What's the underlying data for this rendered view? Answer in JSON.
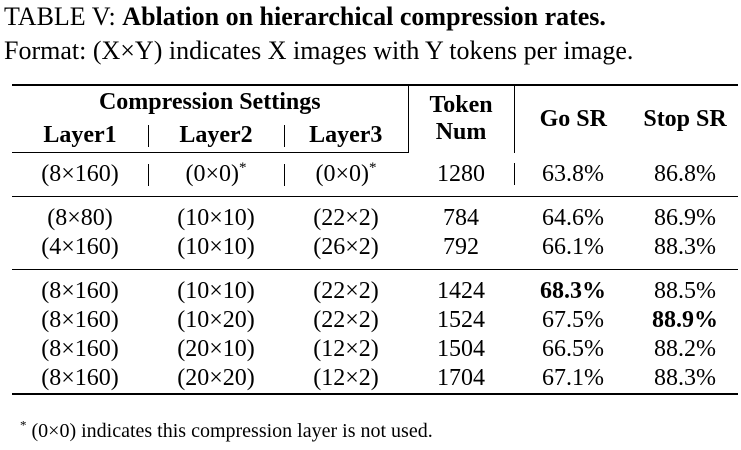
{
  "caption": {
    "label": "TABLE V:",
    "title": "Ablation on hierarchical compression rates.",
    "format_note": "Format: (X×Y) indicates X images with Y tokens per image."
  },
  "table": {
    "group_header": "Compression Settings",
    "columns": [
      "Layer1",
      "Layer2",
      "Layer3",
      "Token Num",
      "Go SR",
      "Stop SR"
    ],
    "row_groups": [
      [
        [
          {
            "text": "(8×160)"
          },
          {
            "text": "(0×0)",
            "note": "*"
          },
          {
            "text": "(0×0)",
            "note": "*"
          },
          {
            "text": "1280"
          },
          {
            "text": "63.8%"
          },
          {
            "text": "86.8%"
          }
        ]
      ],
      [
        [
          {
            "text": "(8×80)"
          },
          {
            "text": "(10×10)"
          },
          {
            "text": "(22×2)"
          },
          {
            "text": "784"
          },
          {
            "text": "64.6%"
          },
          {
            "text": "86.9%"
          }
        ],
        [
          {
            "text": "(4×160)"
          },
          {
            "text": "(10×10)"
          },
          {
            "text": "(26×2)"
          },
          {
            "text": "792"
          },
          {
            "text": "66.1%"
          },
          {
            "text": "88.3%"
          }
        ]
      ],
      [
        [
          {
            "text": "(8×160)"
          },
          {
            "text": "(10×10)"
          },
          {
            "text": "(22×2)"
          },
          {
            "text": "1424"
          },
          {
            "text": "68.3%",
            "bold": true
          },
          {
            "text": "88.5%"
          }
        ],
        [
          {
            "text": "(8×160)"
          },
          {
            "text": "(10×20)"
          },
          {
            "text": "(22×2)"
          },
          {
            "text": "1524"
          },
          {
            "text": "67.5%"
          },
          {
            "text": "88.9%",
            "bold": true
          }
        ],
        [
          {
            "text": "(8×160)"
          },
          {
            "text": "(20×10)"
          },
          {
            "text": "(12×2)"
          },
          {
            "text": "1504"
          },
          {
            "text": "66.5%"
          },
          {
            "text": "88.2%"
          }
        ],
        [
          {
            "text": "(8×160)"
          },
          {
            "text": "(20×20)"
          },
          {
            "text": "(12×2)"
          },
          {
            "text": "1704"
          },
          {
            "text": "67.1%"
          },
          {
            "text": "88.3%"
          }
        ]
      ]
    ]
  },
  "footnote": {
    "mark": "*",
    "text": "(0×0) indicates this compression layer is not used."
  }
}
